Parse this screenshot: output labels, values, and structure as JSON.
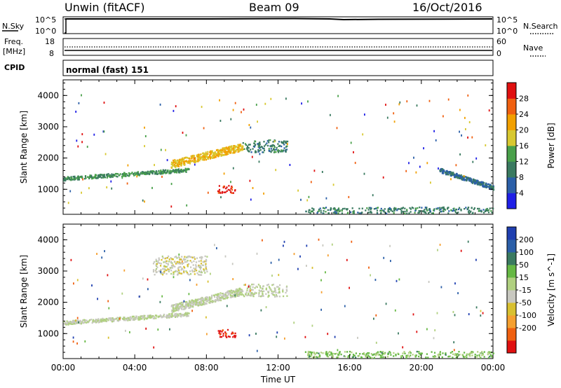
{
  "header": {
    "station": "Unwin (fitACF)",
    "beam": "Beam 09",
    "date": "16/Oct/2016"
  },
  "nsky_panel": {
    "left_label": "N.Sky",
    "left_ticks": [
      "10^5",
      "10^0"
    ],
    "right_ticks": [
      "10^5",
      "10^0"
    ],
    "right_label": "N.Search"
  },
  "freq_panel": {
    "left_label_1": "Freq.",
    "left_label_2": "[MHz]",
    "left_ticks": [
      "18",
      "8"
    ],
    "right_ticks": [
      "60",
      "0"
    ],
    "right_label": "Nave"
  },
  "cpid_panel": {
    "label": "CPID",
    "mode": "normal (fast) 151"
  },
  "colors": {
    "power_scale": [
      "#1f1fe6",
      "#2b5fa8",
      "#3a7a60",
      "#49a04a",
      "#d8c830",
      "#f2a000",
      "#f06010",
      "#e01010"
    ],
    "velocity_scale": [
      "#e01010",
      "#f06010",
      "#f5a030",
      "#d8c030",
      "#c8c8c0",
      "#b0d080",
      "#66b844",
      "#3a7a60",
      "#2b5fa8",
      "#1f3fb0"
    ]
  },
  "chart_data": [
    {
      "type": "heatmap",
      "title": "",
      "quantity": "Power [dB]",
      "xlabel": "Time UT",
      "ylabel": "Slant Range [km]",
      "x_ticks": [
        "00:00",
        "04:00",
        "08:00",
        "12:00",
        "16:00",
        "20:00",
        "00:00"
      ],
      "xlim_hours": [
        0,
        24
      ],
      "ylim_km": [
        200,
        4500
      ],
      "y_ticks": [
        1000,
        2000,
        3000,
        4000
      ],
      "colorbar_label": "Power [dB]",
      "colorbar_ticks": [
        4,
        8,
        12,
        16,
        20,
        24,
        28
      ],
      "colorbar_range": [
        0,
        32
      ],
      "features": [
        {
          "name": "evening band",
          "hours": [
            0,
            7
          ],
          "range_km": [
            1300,
            1700
          ],
          "level": 12
        },
        {
          "name": "rising arc",
          "hours": [
            6,
            10
          ],
          "range_km": [
            1700,
            2500
          ],
          "level": 20
        },
        {
          "name": "strong patch",
          "hours": [
            8.6,
            9.6
          ],
          "range_km": [
            900,
            1150
          ],
          "level": 30
        },
        {
          "name": "upper arc",
          "hours": [
            10,
            12.5
          ],
          "range_km": [
            2200,
            2600
          ],
          "level": 10
        },
        {
          "name": "near-range clutter",
          "hours": [
            13.5,
            24
          ],
          "range_km": [
            250,
            450
          ],
          "level": 10
        },
        {
          "name": "late arc",
          "hours": [
            21,
            24
          ],
          "range_km": [
            1000,
            1700
          ],
          "level": 8
        }
      ]
    },
    {
      "type": "heatmap",
      "title": "",
      "quantity": "Velocity [m s-1]",
      "xlabel": "Time UT",
      "ylabel": "Slant Range [km]",
      "x_ticks": [
        "00:00",
        "04:00",
        "08:00",
        "12:00",
        "16:00",
        "20:00",
        "00:00"
      ],
      "xlim_hours": [
        0,
        24
      ],
      "ylim_km": [
        200,
        4500
      ],
      "y_ticks": [
        1000,
        2000,
        3000,
        4000
      ],
      "colorbar_label": "Velocity [m s^-1]",
      "colorbar_ticks": [
        "200",
        "100",
        "50",
        "15",
        "-15",
        "-50",
        "-100",
        "-200"
      ],
      "colorbar_range": [
        -250,
        250
      ],
      "features": [
        {
          "name": "evening band",
          "hours": [
            0,
            7
          ],
          "range_km": [
            1300,
            1700
          ],
          "level": 0
        },
        {
          "name": "rising arc",
          "hours": [
            6,
            10
          ],
          "range_km": [
            1700,
            2500
          ],
          "level": 0
        },
        {
          "name": "strong patch",
          "hours": [
            8.6,
            9.6
          ],
          "range_km": [
            900,
            1150
          ],
          "level": -220
        },
        {
          "name": "upper arc",
          "hours": [
            10,
            12.5
          ],
          "range_km": [
            2200,
            2600
          ],
          "level": 0
        },
        {
          "name": "upper scatter",
          "hours": [
            5,
            8
          ],
          "range_km": [
            2900,
            3500
          ],
          "level": -30
        },
        {
          "name": "near-range clutter",
          "hours": [
            13.5,
            24
          ],
          "range_km": [
            250,
            450
          ],
          "level": 60
        }
      ]
    }
  ]
}
